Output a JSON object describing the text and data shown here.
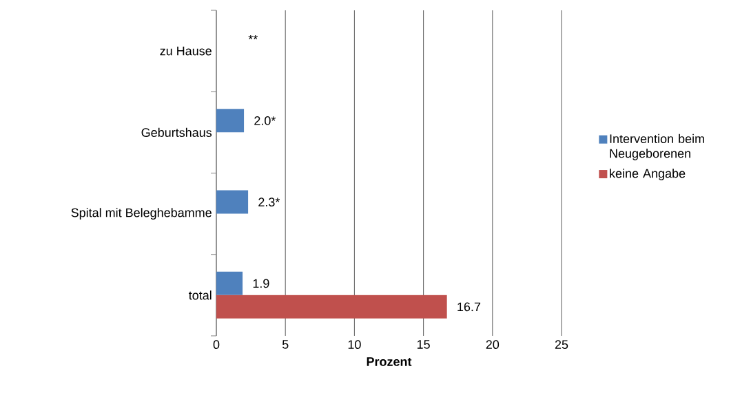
{
  "chart_data": {
    "type": "bar",
    "orientation": "horizontal",
    "categories": [
      "zu Hause",
      "Geburtshaus",
      "Spital mit Beleghebamme",
      "total"
    ],
    "series": [
      {
        "name": "Intervention beim Neugeborenen",
        "color": "#4f81bd",
        "values": [
          null,
          2.0,
          2.3,
          1.9
        ],
        "value_labels": [
          "**",
          "2.0*",
          "2.3*",
          "1.9"
        ]
      },
      {
        "name": "keine Angabe",
        "color": "#c0504d",
        "values": [
          null,
          null,
          null,
          16.7
        ],
        "value_labels": [
          null,
          null,
          null,
          "16.7"
        ]
      }
    ],
    "xlabel": "Prozent",
    "xlim": [
      0,
      25
    ],
    "xticks": [
      0,
      5,
      10,
      15,
      20,
      25
    ],
    "grid": "x",
    "legend": "right"
  }
}
